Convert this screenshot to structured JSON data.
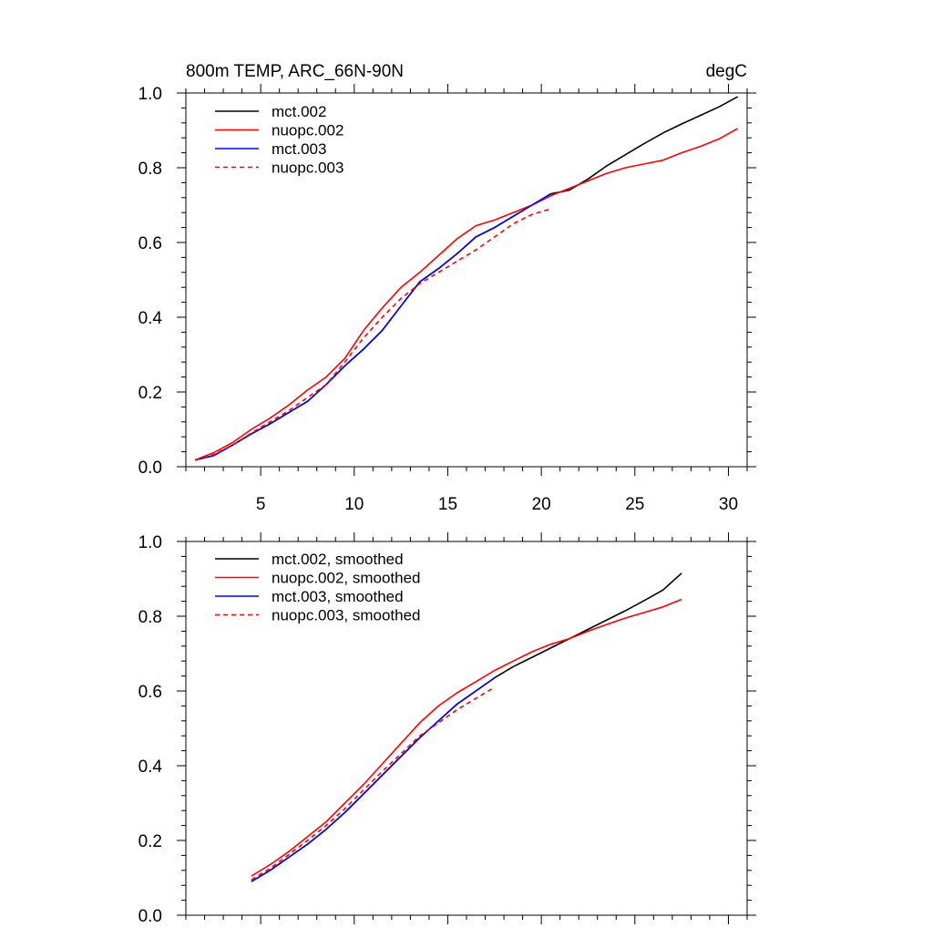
{
  "chart_data": [
    {
      "type": "line",
      "title": "800m TEMP, ARC_66N-90N",
      "units": "degC",
      "xlim": [
        1,
        31
      ],
      "ylim": [
        0,
        1
      ],
      "x_ticks": [
        5,
        10,
        15,
        20,
        25,
        30
      ],
      "y_ticks": [
        0.0,
        0.2,
        0.4,
        0.6,
        0.8,
        1.0
      ],
      "y_tick_labels": [
        "0.0",
        "0.2",
        "0.4",
        "0.6",
        "0.8",
        "1.0"
      ],
      "grid": false,
      "legend": "top-left",
      "series": [
        {
          "name": "mct.002",
          "color": "#000000",
          "dash": "solid",
          "x": [
            1.5,
            2.5,
            3.5,
            4.5,
            5.5,
            6.5,
            7.5,
            8.5,
            9.5,
            10.5,
            11.5,
            12.5,
            13.5,
            14.5,
            15.5,
            16.5,
            17.5,
            18.5,
            19.5,
            20.5,
            21.5,
            22.5,
            23.5,
            24.5,
            25.5,
            26.5,
            27.5,
            28.5,
            29.5,
            30.5
          ],
          "y": [
            0.018,
            0.03,
            0.058,
            0.088,
            0.115,
            0.145,
            0.175,
            0.22,
            0.27,
            0.315,
            0.365,
            0.43,
            0.495,
            0.53,
            0.57,
            0.615,
            0.64,
            0.67,
            0.7,
            0.73,
            0.74,
            0.77,
            0.805,
            0.835,
            0.865,
            0.893,
            0.917,
            0.94,
            0.963,
            0.99
          ]
        },
        {
          "name": "nuopc.002",
          "color": "#ff0000",
          "dash": "solid",
          "x": [
            1.5,
            2.5,
            3.5,
            4.5,
            5.5,
            6.5,
            7.5,
            8.5,
            9.5,
            10.5,
            11.5,
            12.5,
            13.5,
            14.5,
            15.5,
            16.5,
            17.5,
            18.5,
            19.5,
            20.5,
            21.5,
            22.5,
            23.5,
            24.5,
            25.5,
            26.5,
            27.5,
            28.5,
            29.5,
            30.5
          ],
          "y": [
            0.018,
            0.038,
            0.065,
            0.1,
            0.13,
            0.165,
            0.205,
            0.24,
            0.29,
            0.365,
            0.425,
            0.48,
            0.52,
            0.565,
            0.61,
            0.645,
            0.66,
            0.68,
            0.7,
            0.725,
            0.745,
            0.765,
            0.785,
            0.8,
            0.81,
            0.82,
            0.84,
            0.857,
            0.877,
            0.905
          ]
        },
        {
          "name": "mct.003",
          "color": "#0000ff",
          "dash": "solid",
          "x": [
            1.5,
            2.5,
            3.5,
            4.5,
            5.5,
            6.5,
            7.5,
            8.5,
            9.5,
            10.5,
            11.5,
            12.5,
            13.5,
            14.5,
            15.5,
            16.5,
            17.5,
            18.5,
            19.5,
            20.5
          ],
          "y": [
            0.018,
            0.03,
            0.058,
            0.088,
            0.115,
            0.145,
            0.175,
            0.22,
            0.27,
            0.315,
            0.365,
            0.43,
            0.495,
            0.53,
            0.57,
            0.615,
            0.64,
            0.67,
            0.7,
            0.73
          ]
        },
        {
          "name": "nuopc.003",
          "color": "#ff0000",
          "dash": "dashed",
          "x": [
            1.5,
            2.5,
            3.5,
            4.5,
            5.5,
            6.5,
            7.5,
            8.5,
            9.5,
            10.5,
            11.5,
            12.5,
            13.5,
            14.5,
            15.5,
            16.5,
            17.5,
            18.5,
            19.5,
            20.5
          ],
          "y": [
            0.018,
            0.033,
            0.058,
            0.09,
            0.12,
            0.15,
            0.185,
            0.22,
            0.28,
            0.345,
            0.4,
            0.45,
            0.49,
            0.52,
            0.55,
            0.58,
            0.615,
            0.65,
            0.675,
            0.69
          ]
        }
      ]
    },
    {
      "type": "line",
      "xlim": [
        1,
        31
      ],
      "ylim": [
        0,
        1
      ],
      "x_ticks": [
        5,
        10,
        15,
        20,
        25,
        30
      ],
      "y_ticks": [
        0.0,
        0.2,
        0.4,
        0.6,
        0.8,
        1.0
      ],
      "y_tick_labels": [
        "0.0",
        "0.2",
        "0.4",
        "0.6",
        "0.8",
        "1.0"
      ],
      "grid": false,
      "legend": "top-left",
      "series": [
        {
          "name": "mct.002, smoothed",
          "color": "#000000",
          "dash": "solid",
          "x": [
            4.5,
            5.5,
            6.5,
            7.5,
            8.5,
            9.5,
            10.5,
            11.5,
            12.5,
            13.5,
            14.5,
            15.5,
            16.5,
            17.5,
            18.5,
            19.5,
            20.5,
            21.5,
            22.5,
            23.5,
            24.5,
            25.5,
            26.5,
            27.5
          ],
          "y": [
            0.09,
            0.12,
            0.155,
            0.19,
            0.23,
            0.275,
            0.325,
            0.375,
            0.425,
            0.475,
            0.52,
            0.565,
            0.6,
            0.635,
            0.665,
            0.69,
            0.715,
            0.74,
            0.765,
            0.79,
            0.815,
            0.842,
            0.87,
            0.915
          ]
        },
        {
          "name": "nuopc.002, smoothed",
          "color": "#ff0000",
          "dash": "solid",
          "x": [
            4.5,
            5.5,
            6.5,
            7.5,
            8.5,
            9.5,
            10.5,
            11.5,
            12.5,
            13.5,
            14.5,
            15.5,
            16.5,
            17.5,
            18.5,
            19.5,
            20.5,
            21.5,
            22.5,
            23.5,
            24.5,
            25.5,
            26.5,
            27.5
          ],
          "y": [
            0.105,
            0.135,
            0.17,
            0.21,
            0.25,
            0.3,
            0.35,
            0.405,
            0.46,
            0.515,
            0.56,
            0.595,
            0.625,
            0.655,
            0.68,
            0.705,
            0.725,
            0.74,
            0.76,
            0.778,
            0.795,
            0.81,
            0.825,
            0.845
          ]
        },
        {
          "name": "mct.003, smoothed",
          "color": "#0000ff",
          "dash": "solid",
          "x": [
            4.5,
            5.5,
            6.5,
            7.5,
            8.5,
            9.5,
            10.5,
            11.5,
            12.5,
            13.5,
            14.5,
            15.5,
            16.5,
            17.5
          ],
          "y": [
            0.09,
            0.12,
            0.155,
            0.19,
            0.23,
            0.275,
            0.325,
            0.375,
            0.425,
            0.475,
            0.52,
            0.565,
            0.6,
            0.635
          ]
        },
        {
          "name": "nuopc.003, smoothed",
          "color": "#ff0000",
          "dash": "dashed",
          "x": [
            4.5,
            5.5,
            6.5,
            7.5,
            8.5,
            9.5,
            10.5,
            11.5,
            12.5,
            13.5,
            14.5,
            15.5,
            16.5,
            17.5
          ],
          "y": [
            0.095,
            0.125,
            0.162,
            0.2,
            0.24,
            0.285,
            0.335,
            0.385,
            0.432,
            0.48,
            0.515,
            0.55,
            0.58,
            0.61
          ]
        }
      ]
    }
  ]
}
